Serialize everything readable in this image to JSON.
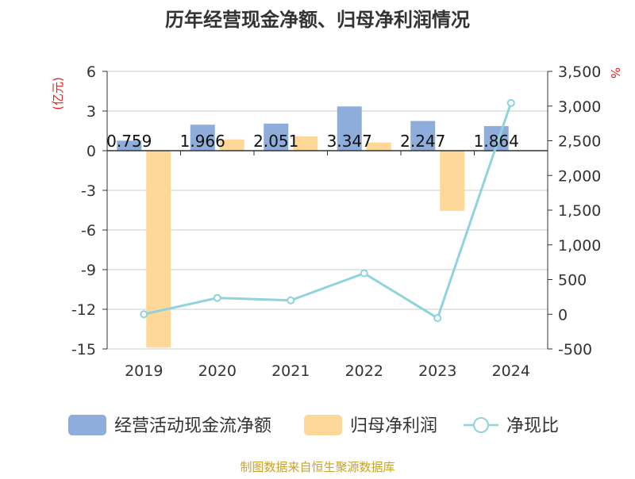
{
  "chart_data": {
    "type": "bar",
    "title": "历年经营现金净额、归母净利润情况",
    "left_axis_unit": "(亿元)",
    "right_axis_unit": "%",
    "categories": [
      "2019",
      "2020",
      "2021",
      "2022",
      "2023",
      "2024"
    ],
    "y_left": {
      "min": -15,
      "max": 6,
      "ticks": [
        6,
        3,
        0,
        -3,
        -6,
        -9,
        -12,
        -15
      ]
    },
    "y_right": {
      "min": -500,
      "max": 3500,
      "ticks": [
        3500,
        3000,
        2500,
        2000,
        1500,
        1000,
        500,
        0,
        -500
      ],
      "tick_labels": [
        "3,500",
        "3,000",
        "2,500",
        "2,000",
        "1,500",
        "1,000",
        "500",
        "0",
        "-500"
      ]
    },
    "series": [
      {
        "name": "经营活动现金流净额",
        "type": "bar",
        "axis": "left",
        "color": "#8eaddb",
        "values": [
          0.759,
          1.966,
          2.051,
          3.347,
          2.247,
          1.864
        ],
        "labels": [
          "0.759",
          "1.966",
          "2.051",
          "3.347",
          "2.247",
          "1.864"
        ]
      },
      {
        "name": "归母净利润",
        "type": "bar",
        "axis": "left",
        "color": "#fdd898",
        "values": [
          -14.9,
          0.85,
          1.08,
          0.62,
          -4.55,
          0.05
        ]
      },
      {
        "name": "净现比",
        "type": "line",
        "axis": "right",
        "color": "#8fd3dc",
        "values": [
          0,
          235,
          200,
          590,
          -55,
          3045
        ]
      }
    ],
    "grid": true,
    "legend_position": "bottom"
  },
  "footer": {
    "source": "制图数据来自恒生聚源数据库"
  }
}
